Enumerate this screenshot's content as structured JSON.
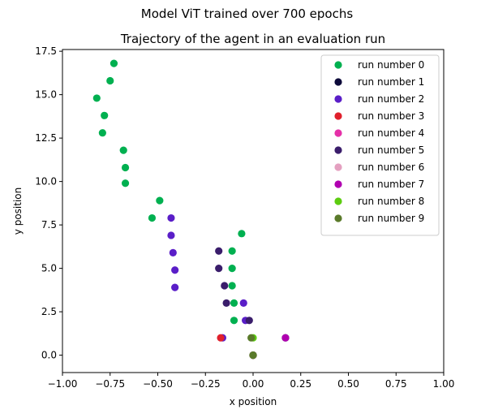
{
  "figure": {
    "suptitle": "Model ViT trained over 700 epochs"
  },
  "chart_data": {
    "type": "scatter",
    "title": "Trajectory of the agent in an evaluation run",
    "xlabel": "x position",
    "ylabel": "y position",
    "xlim": [
      -1.0,
      1.0
    ],
    "ylim": [
      -1.0,
      17.6
    ],
    "xticks": [
      -1.0,
      -0.75,
      -0.5,
      -0.25,
      0.0,
      0.25,
      0.5,
      0.75,
      1.0
    ],
    "xtick_labels": [
      "−1.00",
      "−0.75",
      "−0.50",
      "−0.25",
      "0.00",
      "0.25",
      "0.50",
      "0.75",
      "1.00"
    ],
    "yticks": [
      0.0,
      2.5,
      5.0,
      7.5,
      10.0,
      12.5,
      15.0,
      17.5
    ],
    "ytick_labels": [
      "0.0",
      "2.5",
      "5.0",
      "7.5",
      "10.0",
      "12.5",
      "15.0",
      "17.5"
    ],
    "grid": false,
    "legend_position": "top-right",
    "series": [
      {
        "name": "run number 0",
        "color": "#00b050",
        "points": [
          [
            0,
            0
          ],
          [
            -0.1,
            2
          ],
          [
            -0.1,
            3
          ],
          [
            -0.11,
            4
          ],
          [
            -0.11,
            5
          ],
          [
            -0.11,
            6
          ],
          [
            -0.06,
            7
          ],
          [
            -0.53,
            7.9
          ],
          [
            -0.49,
            8.9
          ],
          [
            -0.67,
            9.9
          ],
          [
            -0.67,
            10.8
          ],
          [
            -0.68,
            11.8
          ],
          [
            -0.79,
            12.8
          ],
          [
            -0.78,
            13.8
          ],
          [
            -0.82,
            14.8
          ],
          [
            -0.75,
            15.8
          ],
          [
            -0.73,
            16.8
          ]
        ]
      },
      {
        "name": "run number 1",
        "color": "#0d0a3a",
        "points": [
          [
            0,
            0
          ],
          [
            0.17,
            1
          ]
        ]
      },
      {
        "name": "run number 2",
        "color": "#5a1ec8",
        "points": [
          [
            0,
            0
          ],
          [
            -0.16,
            1
          ],
          [
            -0.04,
            2
          ],
          [
            -0.05,
            3
          ],
          [
            -0.41,
            3.9
          ],
          [
            -0.41,
            4.9
          ],
          [
            -0.42,
            5.9
          ],
          [
            -0.43,
            6.9
          ],
          [
            -0.43,
            7.9
          ]
        ]
      },
      {
        "name": "run number 3",
        "color": "#e0202c",
        "points": [
          [
            0,
            0
          ],
          [
            -0.17,
            1
          ]
        ]
      },
      {
        "name": "run number 4",
        "color": "#e530a8",
        "points": [
          [
            0,
            0
          ]
        ]
      },
      {
        "name": "run number 5",
        "color": "#3a1d6b",
        "points": [
          [
            0,
            0
          ],
          [
            -0.02,
            2
          ],
          [
            -0.14,
            3
          ],
          [
            -0.15,
            4
          ],
          [
            -0.18,
            5
          ],
          [
            -0.18,
            6
          ]
        ]
      },
      {
        "name": "run number 6",
        "color": "#e4a0c0",
        "points": [
          [
            0,
            0
          ]
        ]
      },
      {
        "name": "run number 7",
        "color": "#b000b0",
        "points": [
          [
            0,
            0
          ],
          [
            0.17,
            1
          ]
        ]
      },
      {
        "name": "run number 8",
        "color": "#5ccc10",
        "points": [
          [
            0,
            0
          ],
          [
            0,
            1
          ]
        ]
      },
      {
        "name": "run number 9",
        "color": "#5a7a2a",
        "points": [
          [
            0,
            0
          ],
          [
            -0.01,
            1
          ]
        ]
      }
    ]
  }
}
